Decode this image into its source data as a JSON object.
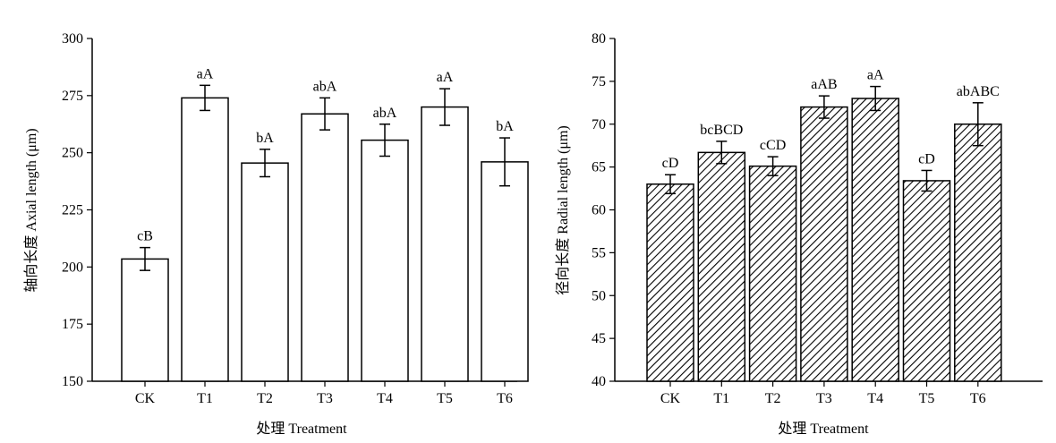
{
  "chart_data": [
    {
      "type": "bar",
      "ylabel": "轴向长度 Axial length (μm)",
      "xlabel": "处理 Treatment",
      "categories": [
        "CK",
        "T1",
        "T2",
        "T3",
        "T4",
        "T5",
        "T6"
      ],
      "values": [
        203.5,
        274,
        245.5,
        267,
        255.5,
        270,
        246
      ],
      "errors": [
        5,
        5.5,
        6,
        7,
        7,
        8,
        10.5
      ],
      "labels": [
        "cB",
        "aA",
        "bA",
        "abA",
        "abA",
        "aA",
        "bA"
      ],
      "ylim": [
        150,
        300
      ],
      "yticks": [
        150,
        175,
        200,
        225,
        250,
        275,
        300
      ],
      "bar_fill": "#ffffff",
      "bar_pattern": "none"
    },
    {
      "type": "bar",
      "ylabel": "径向长度 Radial length (μm)",
      "xlabel": "处理 Treatment",
      "categories": [
        "CK",
        "T1",
        "T2",
        "T3",
        "T4",
        "T5",
        "T6"
      ],
      "values": [
        63,
        66.7,
        65.1,
        72,
        73,
        63.4,
        70
      ],
      "errors": [
        1.1,
        1.3,
        1.1,
        1.3,
        1.4,
        1.2,
        2.5
      ],
      "labels": [
        "cD",
        "bcBCD",
        "cCD",
        "aAB",
        "aA",
        "cD",
        "abABC"
      ],
      "ylim": [
        40,
        80
      ],
      "yticks": [
        40,
        45,
        50,
        55,
        60,
        65,
        70,
        75,
        80
      ],
      "bar_fill": "#ffffff",
      "bar_pattern": "diagonal-hatch"
    }
  ],
  "colors": {
    "axis": "#000000",
    "bar_edge": "#000000",
    "ylabel_text": "#1a3d7c"
  }
}
